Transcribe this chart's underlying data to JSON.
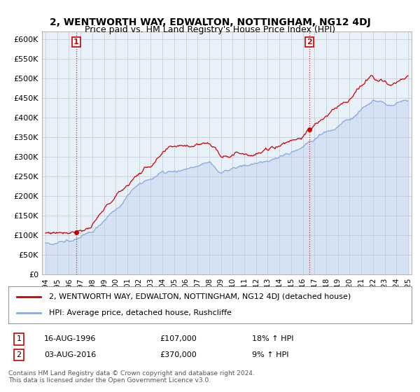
{
  "title": "2, WENTWORTH WAY, EDWALTON, NOTTINGHAM, NG12 4DJ",
  "subtitle": "Price paid vs. HM Land Registry's House Price Index (HPI)",
  "ylim": [
    0,
    620000
  ],
  "yticks": [
    0,
    50000,
    100000,
    150000,
    200000,
    250000,
    300000,
    350000,
    400000,
    450000,
    500000,
    550000,
    600000
  ],
  "ytick_labels": [
    "£0",
    "£50K",
    "£100K",
    "£150K",
    "£200K",
    "£250K",
    "£300K",
    "£350K",
    "£400K",
    "£450K",
    "£500K",
    "£550K",
    "£600K"
  ],
  "sale1_x": 1996.62,
  "sale1_y": 107000,
  "sale1_label": "1",
  "sale2_x": 2016.58,
  "sale2_y": 370000,
  "sale2_label": "2",
  "red_line_color": "#cc0000",
  "blue_line_color": "#88aadd",
  "bg_color": "#e8f0f8",
  "grid_color": "#c0c8d8",
  "legend_line1": "2, WENTWORTH WAY, EDWALTON, NOTTINGHAM, NG12 4DJ (detached house)",
  "legend_line2": "HPI: Average price, detached house, Rushcliffe",
  "table_row1": [
    "1",
    "16-AUG-1996",
    "£107,000",
    "18% ↑ HPI"
  ],
  "table_row2": [
    "2",
    "03-AUG-2016",
    "£370,000",
    "9% ↑ HPI"
  ],
  "footnote": "Contains HM Land Registry data © Crown copyright and database right 2024.\nThis data is licensed under the Open Government Licence v3.0.",
  "xmin": 1993.7,
  "xmax": 2025.3
}
